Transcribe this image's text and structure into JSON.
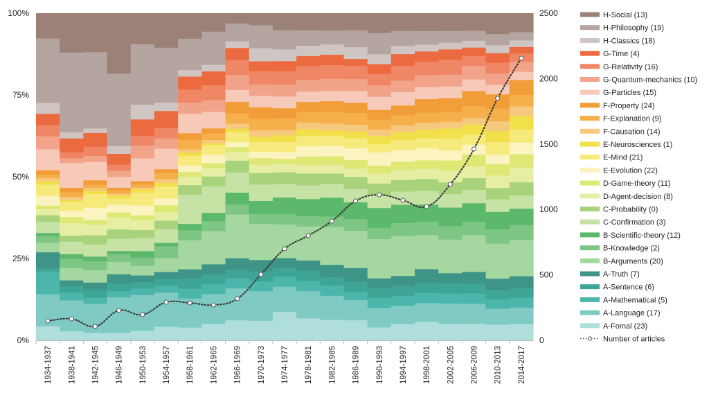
{
  "chart_data": {
    "type": "area",
    "subtype": "stacked-100-percent-with-line",
    "categories": [
      "1934-1937",
      "1938-1941",
      "1942-1945",
      "1946-1949",
      "1950-1953",
      "1954-1957",
      "1958-1961",
      "1962-1965",
      "1966-1969",
      "1970-1973",
      "1974-1977",
      "1978-1981",
      "1982-1985",
      "1986-1989",
      "1990-1993",
      "1994-1997",
      "1998-2001",
      "2002-2005",
      "2006-2009",
      "2010-2013",
      "2014-2017"
    ],
    "left_axis": {
      "ticks": [
        "0%",
        "25%",
        "50%",
        "75%",
        "100%"
      ],
      "ylim": [
        0,
        100
      ]
    },
    "right_axis": {
      "ticks": [
        "0",
        "500",
        "1000",
        "1500",
        "2000",
        "2500"
      ],
      "ylim": [
        0,
        2500
      ]
    },
    "legend_position": "right",
    "series": [
      {
        "name": "A-Fomal (23)",
        "color": "#b0dfdb",
        "values": [
          4.4,
          3,
          2.5,
          2.5,
          3,
          4,
          4,
          5,
          6,
          6,
          8.5,
          6.5,
          6,
          6,
          4,
          5,
          5.5,
          5,
          5,
          5,
          5
        ]
      },
      {
        "name": "A-Language (17)",
        "color": "#7fcbc4",
        "values": [
          10,
          10,
          9.5,
          11.5,
          11,
          10,
          9,
          9,
          9.5,
          9,
          7.5,
          8,
          7,
          6,
          6,
          5.5,
          5.5,
          6,
          6,
          5,
          5
        ]
      },
      {
        "name": "A-Mathematical (5)",
        "color": "#4db6ac",
        "values": [
          7,
          2.5,
          2,
          2,
          2,
          2,
          3,
          3,
          3,
          3,
          3,
          3,
          3,
          2.5,
          3,
          3,
          3,
          3,
          3,
          3,
          3
        ]
      },
      {
        "name": "A-Sentence (6)",
        "color": "#3fa597",
        "values": [
          1,
          2,
          2.5,
          2.5,
          2,
          2,
          3,
          3,
          2.5,
          3,
          2.5,
          3,
          2.5,
          3,
          3,
          3,
          3,
          3,
          3,
          3,
          3
        ]
      },
      {
        "name": "A-Truth (7)",
        "color": "#3e9587",
        "values": [
          5,
          2,
          2.5,
          3,
          2,
          2,
          3,
          3,
          3.5,
          3.5,
          3,
          3,
          3.5,
          4,
          3,
          3,
          4,
          3,
          3.5,
          3.5,
          3.5
        ]
      },
      {
        "name": "B-Arguments (20)",
        "color": "#a5d7a0",
        "values": [
          3,
          4,
          4,
          4,
          3,
          4,
          9,
          10,
          13,
          11,
          10,
          10,
          11,
          11,
          12,
          12,
          10,
          10,
          11,
          11,
          11
        ]
      },
      {
        "name": "B-Knowledge (2)",
        "color": "#7ec684",
        "values": [
          2,
          3,
          3,
          2.5,
          2.5,
          3.5,
          3,
          3,
          3,
          3,
          3,
          3,
          3,
          3.5,
          3.5,
          4,
          4,
          4,
          4,
          4.5,
          4.5
        ]
      },
      {
        "name": "B-Scientific-theory (12)",
        "color": "#5cb86a",
        "values": [
          1,
          1.5,
          1.5,
          1,
          2,
          1,
          2,
          2.5,
          3.5,
          4,
          5,
          5,
          5.5,
          5,
          6,
          5.5,
          5,
          5.5,
          5.5,
          5.5,
          5
        ]
      },
      {
        "name": "C-Confirmation (3)",
        "color": "#c6e2a4",
        "values": [
          3.5,
          4,
          4,
          4,
          4,
          4,
          9,
          8,
          6,
          5,
          4,
          4,
          4,
          4,
          4,
          4,
          4,
          4,
          4,
          4,
          4
        ]
      },
      {
        "name": "C-Probability (0)",
        "color": "#a8d37c",
        "values": [
          2,
          2,
          3,
          3,
          2.5,
          2.5,
          3,
          3,
          3.5,
          3.5,
          3.5,
          3.5,
          3,
          3.5,
          3.5,
          3.5,
          3.5,
          3.5,
          3.5,
          3.5,
          4
        ]
      },
      {
        "name": "D-Agent-decision (8)",
        "color": "#e6eea4",
        "values": [
          2,
          4,
          3.5,
          4,
          3,
          2.5,
          2.5,
          2.5,
          2.5,
          2.5,
          2.5,
          2.5,
          2.5,
          2.5,
          3,
          3,
          3,
          3.5,
          3.5,
          4,
          4.5
        ]
      },
      {
        "name": "D-Game-theory (11)",
        "color": "#dde875",
        "values": [
          1,
          2,
          1.5,
          1.5,
          1.5,
          2,
          1.5,
          1.5,
          1.5,
          2,
          1.5,
          2.5,
          2.5,
          2.5,
          2.5,
          2.5,
          2.5,
          3,
          3.5,
          3.5,
          4
        ]
      },
      {
        "name": "E-Evolution (22)",
        "color": "#fbf3c0",
        "values": [
          3,
          2,
          4,
          2.5,
          3,
          2,
          2,
          2.5,
          1.5,
          2,
          2,
          3,
          3,
          3.5,
          4,
          3.5,
          3.5,
          3,
          3,
          3,
          3.5
        ]
      },
      {
        "name": "E-Mind (21)",
        "color": "#f7ea7d",
        "values": [
          3.5,
          3,
          4.5,
          2,
          4,
          3.5,
          3,
          3,
          3,
          3,
          3,
          3,
          3,
          3,
          2.5,
          3,
          3,
          3.5,
          3,
          4,
          4
        ]
      },
      {
        "name": "E-Neurosciences (1)",
        "color": "#f2e04a",
        "values": [
          1,
          0.5,
          1,
          1,
          1,
          1,
          1,
          0.5,
          1,
          1.5,
          2,
          2,
          1.5,
          2,
          2.5,
          2.5,
          2.5,
          3,
          3,
          3.5,
          4
        ]
      },
      {
        "name": "F-Causation (14)",
        "color": "#f6c97f",
        "values": [
          1,
          1,
          1,
          0.5,
          0.5,
          1,
          1,
          1,
          1.5,
          2,
          1.5,
          2,
          2,
          2,
          2,
          2,
          2,
          2,
          2,
          3,
          3
        ]
      },
      {
        "name": "F-Explanation (9)",
        "color": "#f5b04b",
        "values": [
          1,
          1.5,
          1,
          1,
          1,
          2,
          3,
          2,
          3,
          3.5,
          3.5,
          3,
          3.5,
          3.5,
          3,
          3,
          3,
          3,
          3.5,
          4,
          3.5
        ]
      },
      {
        "name": "F-Property (24)",
        "color": "#f19d38",
        "values": [
          1.5,
          1.5,
          1.5,
          1,
          1,
          1,
          2,
          1.5,
          3.5,
          3.5,
          3,
          3,
          3,
          3,
          3,
          3,
          4,
          4,
          4.5,
          4.5,
          4.5
        ]
      },
      {
        "name": "G-Particles (15)",
        "color": "#f7c9b8",
        "values": [
          6.5,
          8,
          6,
          3.5,
          7,
          6,
          6,
          5,
          3.5,
          3.5,
          3.5,
          3,
          3,
          3.5,
          4,
          4,
          3.5,
          3.5,
          3.5,
          3,
          2.5
        ]
      },
      {
        "name": "G-Quantum-mechanics (10)",
        "color": "#f2a48b",
        "values": [
          4,
          1.5,
          2,
          2,
          4,
          3,
          3.5,
          3.5,
          4.5,
          3.5,
          3.5,
          3.5,
          3.5,
          3.5,
          3.5,
          3.5,
          3.5,
          3.5,
          4,
          3.5,
          3
        ]
      },
      {
        "name": "G-Relativity (16)",
        "color": "#ef8766",
        "values": [
          3.5,
          2,
          3,
          2,
          3,
          3,
          4,
          4.5,
          4.5,
          4,
          4,
          4,
          4,
          4,
          3.5,
          4.5,
          4,
          4.5,
          3,
          3.5,
          2.5
        ]
      },
      {
        "name": "G-Time (4)",
        "color": "#ec6a3f",
        "values": [
          3.5,
          4.5,
          4.5,
          3.5,
          5,
          5,
          4,
          4.2,
          3.5,
          3,
          3,
          3,
          3,
          2,
          3,
          3.5,
          3,
          3,
          2.5,
          3,
          2
        ]
      },
      {
        "name": "H-Classics (18)",
        "color": "#cfc5c3",
        "values": [
          3.4,
          2,
          1.5,
          2.5,
          4.5,
          2.5,
          2,
          2,
          2,
          4,
          3.5,
          3,
          3,
          3.5,
          3,
          2.5,
          2,
          2,
          2,
          2.5,
          2
        ]
      },
      {
        "name": "H-Philosophy (19)",
        "color": "#b5a5a0",
        "values": [
          20,
          25.8,
          25,
          23.5,
          18.6,
          16,
          9.7,
          10,
          5.3,
          7,
          5.7,
          4.5,
          4,
          5,
          6.5,
          4.5,
          4,
          3.5,
          3,
          3.5,
          2.5
        ]
      },
      {
        "name": "H-Social (13)",
        "color": "#9c8177",
        "values": [
          7.8,
          12.7,
          12.7,
          19.5,
          9.5,
          10,
          7.8,
          5.5,
          3,
          3.6,
          5,
          5,
          5,
          5,
          6,
          5.3,
          5.2,
          5.2,
          5.2,
          6.5,
          5.7
        ]
      }
    ],
    "line": {
      "name": "Number of articles",
      "axis": "right",
      "color": "#3a3a3a",
      "values": [
        148,
        164,
        106,
        228,
        196,
        291,
        286,
        270,
        318,
        503,
        699,
        800,
        911,
        1065,
        1112,
        1070,
        1022,
        1192,
        1462,
        1849,
        2156
      ]
    }
  }
}
